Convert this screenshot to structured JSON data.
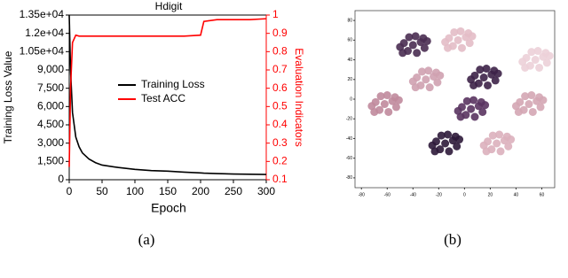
{
  "chart_data": [
    {
      "type": "line",
      "title": "Hdigit",
      "xlabel": "Epoch",
      "ylabel": "Training Loss Value",
      "y2label": "Evaluation Indicators",
      "x": [
        0,
        2,
        5,
        10,
        15,
        20,
        30,
        40,
        50,
        75,
        100,
        125,
        150,
        175,
        200,
        205,
        225,
        250,
        275,
        300
      ],
      "series": [
        {
          "name": "Training Loss",
          "color": "#000000",
          "values": [
            13500,
            9000,
            5500,
            3500,
            2700,
            2200,
            1700,
            1400,
            1200,
            1000,
            850,
            750,
            700,
            620,
            560,
            540,
            500,
            470,
            450,
            430
          ]
        },
        {
          "name": "Test ACC",
          "color": "#ff0000",
          "axis": "y2",
          "values": [
            0.17,
            0.6,
            0.85,
            0.89,
            0.885,
            0.885,
            0.885,
            0.885,
            0.885,
            0.885,
            0.885,
            0.885,
            0.885,
            0.885,
            0.89,
            0.965,
            0.975,
            0.975,
            0.975,
            0.98
          ]
        }
      ],
      "xlim": [
        0,
        300
      ],
      "xticks": [
        0,
        50,
        100,
        150,
        200,
        250,
        300
      ],
      "ylim": [
        0,
        13500
      ],
      "yticks": [
        0,
        {
          "value": 1500,
          "label": "1,500"
        },
        {
          "value": 3000,
          "label": "3,000"
        },
        {
          "value": 4500,
          "label": "4,500"
        },
        {
          "value": 6000,
          "label": "6,000"
        },
        {
          "value": 7500,
          "label": "7,500"
        },
        {
          "value": 9000,
          "label": "9,000"
        },
        {
          "value": 10500,
          "label": "1.05e+04"
        },
        {
          "value": 12000,
          "label": "1.2e+04"
        },
        {
          "value": 13500,
          "label": "1.35e+04"
        }
      ],
      "y2lim": [
        0.1,
        1
      ],
      "y2ticks": [
        0.1,
        0.2,
        0.3,
        0.4,
        0.5,
        0.6,
        0.7,
        0.8,
        0.9,
        1
      ],
      "y2color": "#ff0000",
      "legend": "center"
    },
    {
      "type": "scatter",
      "xlim": [
        -85,
        70
      ],
      "ylim": [
        -90,
        90
      ],
      "xticks": [
        -80,
        -60,
        -40,
        -20,
        0,
        20,
        40,
        60
      ],
      "yticks": [
        -80,
        -60,
        -40,
        -20,
        0,
        20,
        40,
        60,
        80
      ],
      "series": [
        {
          "color": "#4a2d52",
          "x": [
            -40,
            -34,
            -47,
            -37,
            -44,
            -31,
            -50,
            -38,
            -43,
            -32,
            -48,
            -29
          ],
          "values": [
            55,
            58,
            57,
            47,
            49,
            52,
            53,
            64,
            63,
            62,
            47,
            59
          ]
        },
        {
          "color": "#e3bcc6",
          "x": [
            -5,
            1,
            -12,
            -2,
            -9,
            4,
            -15,
            -3,
            -8,
            3,
            -13,
            6
          ],
          "values": [
            60,
            63,
            62,
            52,
            54,
            57,
            58,
            69,
            68,
            67,
            52,
            64
          ]
        },
        {
          "color": "#ecd0d8",
          "x": [
            55,
            61,
            48,
            58,
            51,
            64,
            45,
            57,
            52,
            63,
            47,
            66
          ],
          "values": [
            40,
            43,
            42,
            32,
            34,
            37,
            38,
            49,
            48,
            47,
            32,
            44
          ]
        },
        {
          "color": "#cfa1b0",
          "x": [
            -30,
            -24,
            -37,
            -27,
            -34,
            -21,
            -40,
            -28,
            -33,
            -22,
            -38,
            -19
          ],
          "values": [
            20,
            23,
            22,
            12,
            14,
            17,
            18,
            29,
            28,
            27,
            12,
            24
          ]
        },
        {
          "color": "#3d2248",
          "x": [
            15,
            21,
            8,
            18,
            11,
            24,
            5,
            17,
            12,
            23,
            7,
            26
          ],
          "values": [
            22,
            25,
            24,
            14,
            16,
            19,
            20,
            31,
            30,
            29,
            14,
            26
          ]
        },
        {
          "color": "#c08a9c",
          "x": [
            -62,
            -56,
            -69,
            -59,
            -66,
            -53,
            -72,
            -60,
            -65,
            -54,
            -70,
            -51
          ],
          "values": [
            -5,
            -2,
            -3,
            -13,
            -11,
            -8,
            -7,
            4,
            3,
            2,
            -13,
            -1
          ]
        },
        {
          "color": "#5a3460",
          "x": [
            5,
            11,
            -2,
            8,
            1,
            14,
            -5,
            7,
            2,
            13,
            -3,
            16
          ],
          "values": [
            -10,
            -7,
            -8,
            -18,
            -16,
            -13,
            -12,
            -1,
            -2,
            -3,
            -18,
            -6
          ]
        },
        {
          "color": "#d4a6b4",
          "x": [
            50,
            56,
            43,
            53,
            46,
            59,
            40,
            52,
            47,
            58,
            42,
            61
          ],
          "values": [
            -5,
            -2,
            -3,
            -13,
            -11,
            -8,
            -7,
            4,
            3,
            2,
            -13,
            -1
          ]
        },
        {
          "color": "#2e1a3a",
          "x": [
            -15,
            -9,
            -22,
            -12,
            -19,
            -6,
            -25,
            -13,
            -18,
            -7,
            -23,
            -4
          ],
          "values": [
            -45,
            -42,
            -43,
            -53,
            -51,
            -48,
            -47,
            -36,
            -37,
            -38,
            -53,
            -41
          ]
        },
        {
          "color": "#dcb0bc",
          "x": [
            25,
            31,
            18,
            28,
            21,
            34,
            15,
            27,
            22,
            33,
            17,
            36
          ],
          "values": [
            -45,
            -42,
            -43,
            -53,
            -51,
            -48,
            -47,
            -36,
            -37,
            -38,
            -53,
            -41
          ]
        }
      ]
    }
  ],
  "panel_labels": [
    "(a)",
    "(b)"
  ]
}
